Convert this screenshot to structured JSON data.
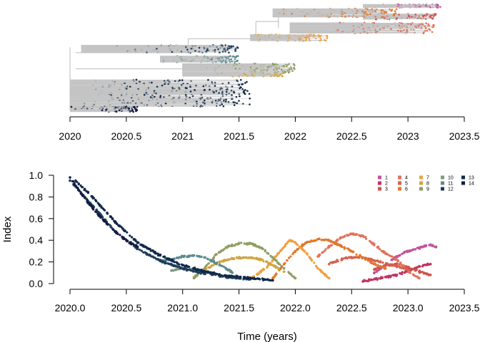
{
  "chart_data": [
    {
      "type": "tree",
      "title": "",
      "xlabel": "",
      "ylabel": "",
      "xlim": [
        2020,
        2023.5
      ],
      "xticks": [
        "2020",
        "2020.5",
        "2021",
        "2021.5",
        "2022",
        "2022.5",
        "2023",
        "2023.5"
      ],
      "clades": [
        {
          "name": "1",
          "color": "#c2549a",
          "x": [
            2022.7,
            2023.3
          ],
          "y": [
            0.97,
            1.0
          ],
          "anchor": 2022.6
        },
        {
          "name": "3",
          "color": "#d0524d",
          "x": [
            2022.7,
            2023.25
          ],
          "y": [
            0.86,
            0.91
          ],
          "anchor": 2022.6
        },
        {
          "name": "4",
          "color": "#e3725a",
          "x": [
            2022.3,
            2023.25
          ],
          "y": [
            0.73,
            0.83
          ],
          "anchor": 2021.95
        },
        {
          "name": "6",
          "color": "#e0782e",
          "x": [
            2021.85,
            2022.9
          ],
          "y": [
            0.88,
            0.96
          ],
          "anchor": 2021.8
        },
        {
          "name": "7",
          "color": "#efa03e",
          "x": [
            2021.6,
            2022.3
          ],
          "y": [
            0.66,
            0.72
          ],
          "anchor": 2021.6
        },
        {
          "name": "9",
          "color": "#8f9e64",
          "x": [
            2021.2,
            2022.0
          ],
          "y": [
            0.36,
            0.45
          ],
          "anchor": 2021.0
        },
        {
          "name": "8",
          "color": "#cfa63f",
          "x": [
            2021.3,
            2021.9
          ],
          "y": [
            0.33,
            0.36
          ],
          "anchor": 2021.0
        },
        {
          "name": "11",
          "color": "#5c8a8e",
          "x": [
            2020.8,
            2021.5
          ],
          "y": [
            0.46,
            0.52
          ],
          "anchor": 2020.8
        },
        {
          "name": "12",
          "color": "#1e3e5a",
          "x": [
            2020.4,
            2021.5
          ],
          "y": [
            0.55,
            0.62
          ],
          "anchor": 2020.1
        },
        {
          "name": "13",
          "color": "#10294a",
          "x": [
            2020.1,
            2021.6
          ],
          "y": [
            0.05,
            0.3
          ],
          "anchor": 2020.0
        },
        {
          "name": "14",
          "color": "#141c40",
          "x": [
            2020.0,
            2020.6
          ],
          "y": [
            0.0,
            0.05
          ],
          "anchor": 2020.0
        }
      ]
    },
    {
      "type": "scatter",
      "title": "",
      "xlabel": "Time (years)",
      "ylabel": "Index",
      "xlim": [
        2020.0,
        2023.5
      ],
      "ylim": [
        0.0,
        1.0
      ],
      "xticks": [
        "2020.0",
        "2020.5",
        "2021.0",
        "2021.5",
        "2022.0",
        "2022.5",
        "2023.0",
        "2023.5"
      ],
      "yticks": [
        "0.0",
        "0.2",
        "0.4",
        "0.6",
        "0.8",
        "1.0"
      ],
      "legend_position": "top-right",
      "series": [
        {
          "name": "1",
          "color": "#c2549a",
          "x": [
            2022.7,
            2022.8,
            2022.9,
            2023.0,
            2023.1,
            2023.2,
            2023.25
          ],
          "y": [
            0.1,
            0.17,
            0.25,
            0.3,
            0.33,
            0.36,
            0.34
          ]
        },
        {
          "name": "2",
          "color": "#c1345f",
          "x": [
            2022.6,
            2022.8,
            2022.9,
            2023.0,
            2023.1,
            2023.2
          ],
          "y": [
            0.02,
            0.06,
            0.08,
            0.12,
            0.16,
            0.18
          ]
        },
        {
          "name": "3",
          "color": "#d0524d",
          "x": [
            2022.7,
            2022.8,
            2022.9,
            2023.0,
            2023.1,
            2023.2
          ],
          "y": [
            0.13,
            0.17,
            0.18,
            0.15,
            0.11,
            0.08
          ]
        },
        {
          "name": "4",
          "color": "#e3725a",
          "x": [
            2022.2,
            2022.3,
            2022.4,
            2022.5,
            2022.6,
            2022.7,
            2022.8,
            2022.9,
            2023.0,
            2023.1
          ],
          "y": [
            0.25,
            0.34,
            0.42,
            0.46,
            0.44,
            0.36,
            0.28,
            0.22,
            0.12,
            0.05
          ]
        },
        {
          "name": "5",
          "color": "#d8604f",
          "x": [
            2022.3,
            2022.45,
            2022.6,
            2022.75,
            2022.9,
            2023.0
          ],
          "y": [
            0.18,
            0.24,
            0.24,
            0.2,
            0.16,
            0.13
          ]
        },
        {
          "name": "6",
          "color": "#e0782e",
          "x": [
            2021.8,
            2021.9,
            2022.0,
            2022.1,
            2022.2,
            2022.3,
            2022.4,
            2022.5,
            2022.6,
            2022.7,
            2022.8
          ],
          "y": [
            0.05,
            0.18,
            0.3,
            0.38,
            0.41,
            0.4,
            0.35,
            0.3,
            0.24,
            0.18,
            0.14
          ]
        },
        {
          "name": "7",
          "color": "#efa03e",
          "x": [
            2021.6,
            2021.75,
            2021.85,
            2021.95,
            2022.0,
            2022.1,
            2022.2,
            2022.3
          ],
          "y": [
            0.04,
            0.15,
            0.28,
            0.4,
            0.38,
            0.28,
            0.14,
            0.05
          ]
        },
        {
          "name": "8",
          "color": "#cfa63f",
          "x": [
            2021.1,
            2021.2,
            2021.3,
            2021.4,
            2021.5,
            2021.6,
            2021.7,
            2021.8,
            2021.9
          ],
          "y": [
            0.06,
            0.13,
            0.19,
            0.22,
            0.24,
            0.24,
            0.22,
            0.17,
            0.11
          ]
        },
        {
          "name": "9",
          "color": "#8f9e64",
          "x": [
            2021.1,
            2021.2,
            2021.3,
            2021.4,
            2021.5,
            2021.6,
            2021.7,
            2021.8,
            2021.9,
            2022.0
          ],
          "y": [
            0.05,
            0.15,
            0.27,
            0.34,
            0.37,
            0.37,
            0.33,
            0.24,
            0.14,
            0.05
          ]
        },
        {
          "name": "10",
          "color": "#7d9980",
          "x": [
            2020.9,
            2021.0,
            2021.1,
            2021.2
          ],
          "y": [
            0.12,
            0.14,
            0.13,
            0.1
          ]
        },
        {
          "name": "11",
          "color": "#5c8a8e",
          "x": [
            2020.8,
            2020.9,
            2021.0,
            2021.1,
            2021.2,
            2021.3,
            2021.4,
            2021.5
          ],
          "y": [
            0.21,
            0.22,
            0.25,
            0.26,
            0.24,
            0.19,
            0.13,
            0.06
          ]
        },
        {
          "name": "12",
          "color": "#1e3e5a",
          "x": [
            2020.0,
            2020.2,
            2020.4,
            2020.6,
            2020.8,
            2021.0,
            2021.2,
            2021.4,
            2021.6
          ],
          "y": [
            0.95,
            0.72,
            0.48,
            0.32,
            0.21,
            0.14,
            0.09,
            0.06,
            0.04
          ]
        },
        {
          "name": "13",
          "color": "#10294a",
          "x": [
            2020.05,
            2020.2,
            2020.4,
            2020.6,
            2020.8,
            2021.0,
            2021.2,
            2021.4,
            2021.6,
            2021.8
          ],
          "y": [
            0.95,
            0.8,
            0.57,
            0.38,
            0.26,
            0.17,
            0.11,
            0.07,
            0.05,
            0.03
          ]
        },
        {
          "name": "14",
          "color": "#141c40",
          "x": [
            2020.0,
            2020.1,
            2020.2,
            2020.3,
            2020.4,
            2020.5,
            2020.6
          ],
          "y": [
            0.98,
            0.83,
            0.7,
            0.58,
            0.48,
            0.4,
            0.34
          ]
        }
      ]
    }
  ]
}
